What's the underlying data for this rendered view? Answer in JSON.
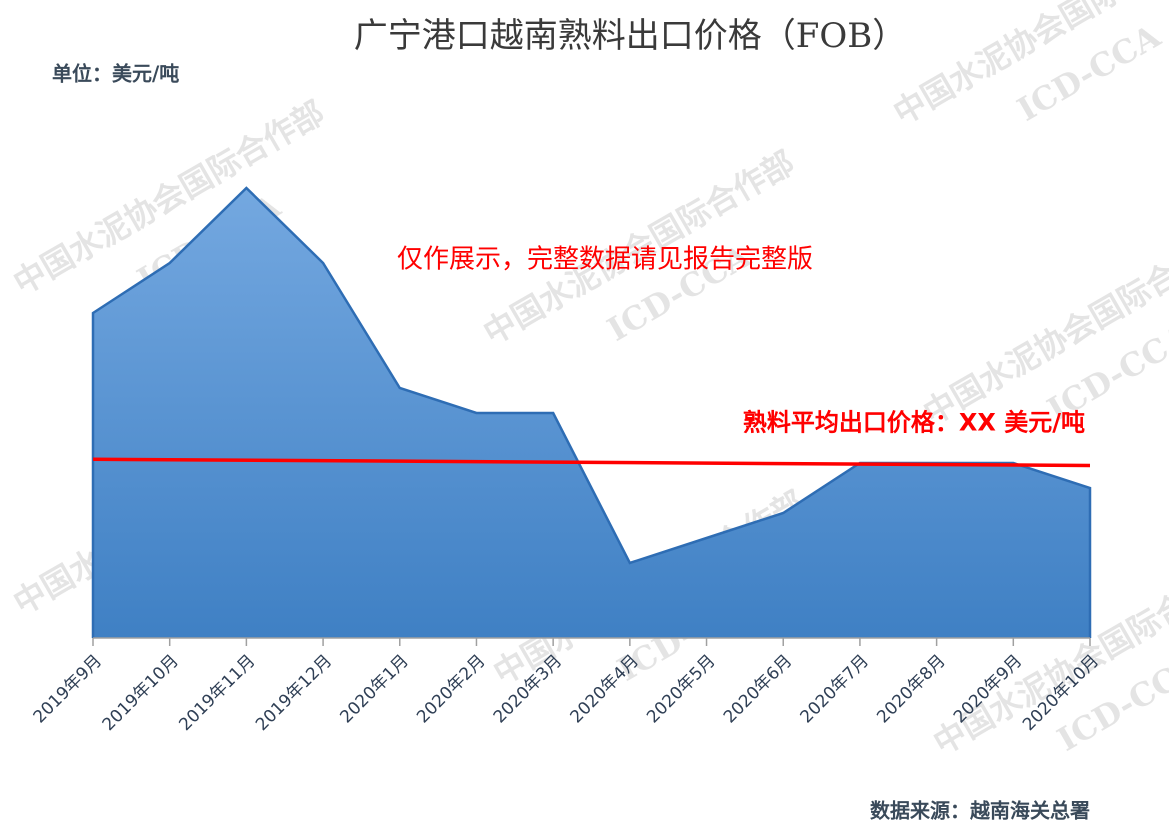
{
  "chart_data": {
    "type": "area",
    "title": "广宁港口越南熟料出口价格（FOB）",
    "unit_label": "单位：美元/吨",
    "source": "数据来源：越南海关总署",
    "annotation": "仅作展示，完整数据请见报告完整版",
    "watermark": [
      "中国水泥协会国际合作部",
      "ICD-CCA"
    ],
    "categories": [
      "2019年9月",
      "2019年10月",
      "2019年11月",
      "2019年12月",
      "2020年1月",
      "2020年2月",
      "2020年3月",
      "2020年4月",
      "2020年5月",
      "2020年6月",
      "2020年7月",
      "2020年8月",
      "2020年9月",
      "2020年10月"
    ],
    "values": [
      26,
      30,
      36,
      30,
      20,
      18,
      18,
      6,
      8,
      10,
      14,
      14,
      14,
      12
    ],
    "color": "#4a8ad0",
    "ylim": [
      0,
      40
    ],
    "reference_line": {
      "label": "熟料平均出口价格：XX 美元/吨",
      "color": "#ff0000",
      "values": [
        14.3,
        13.8
      ]
    }
  }
}
